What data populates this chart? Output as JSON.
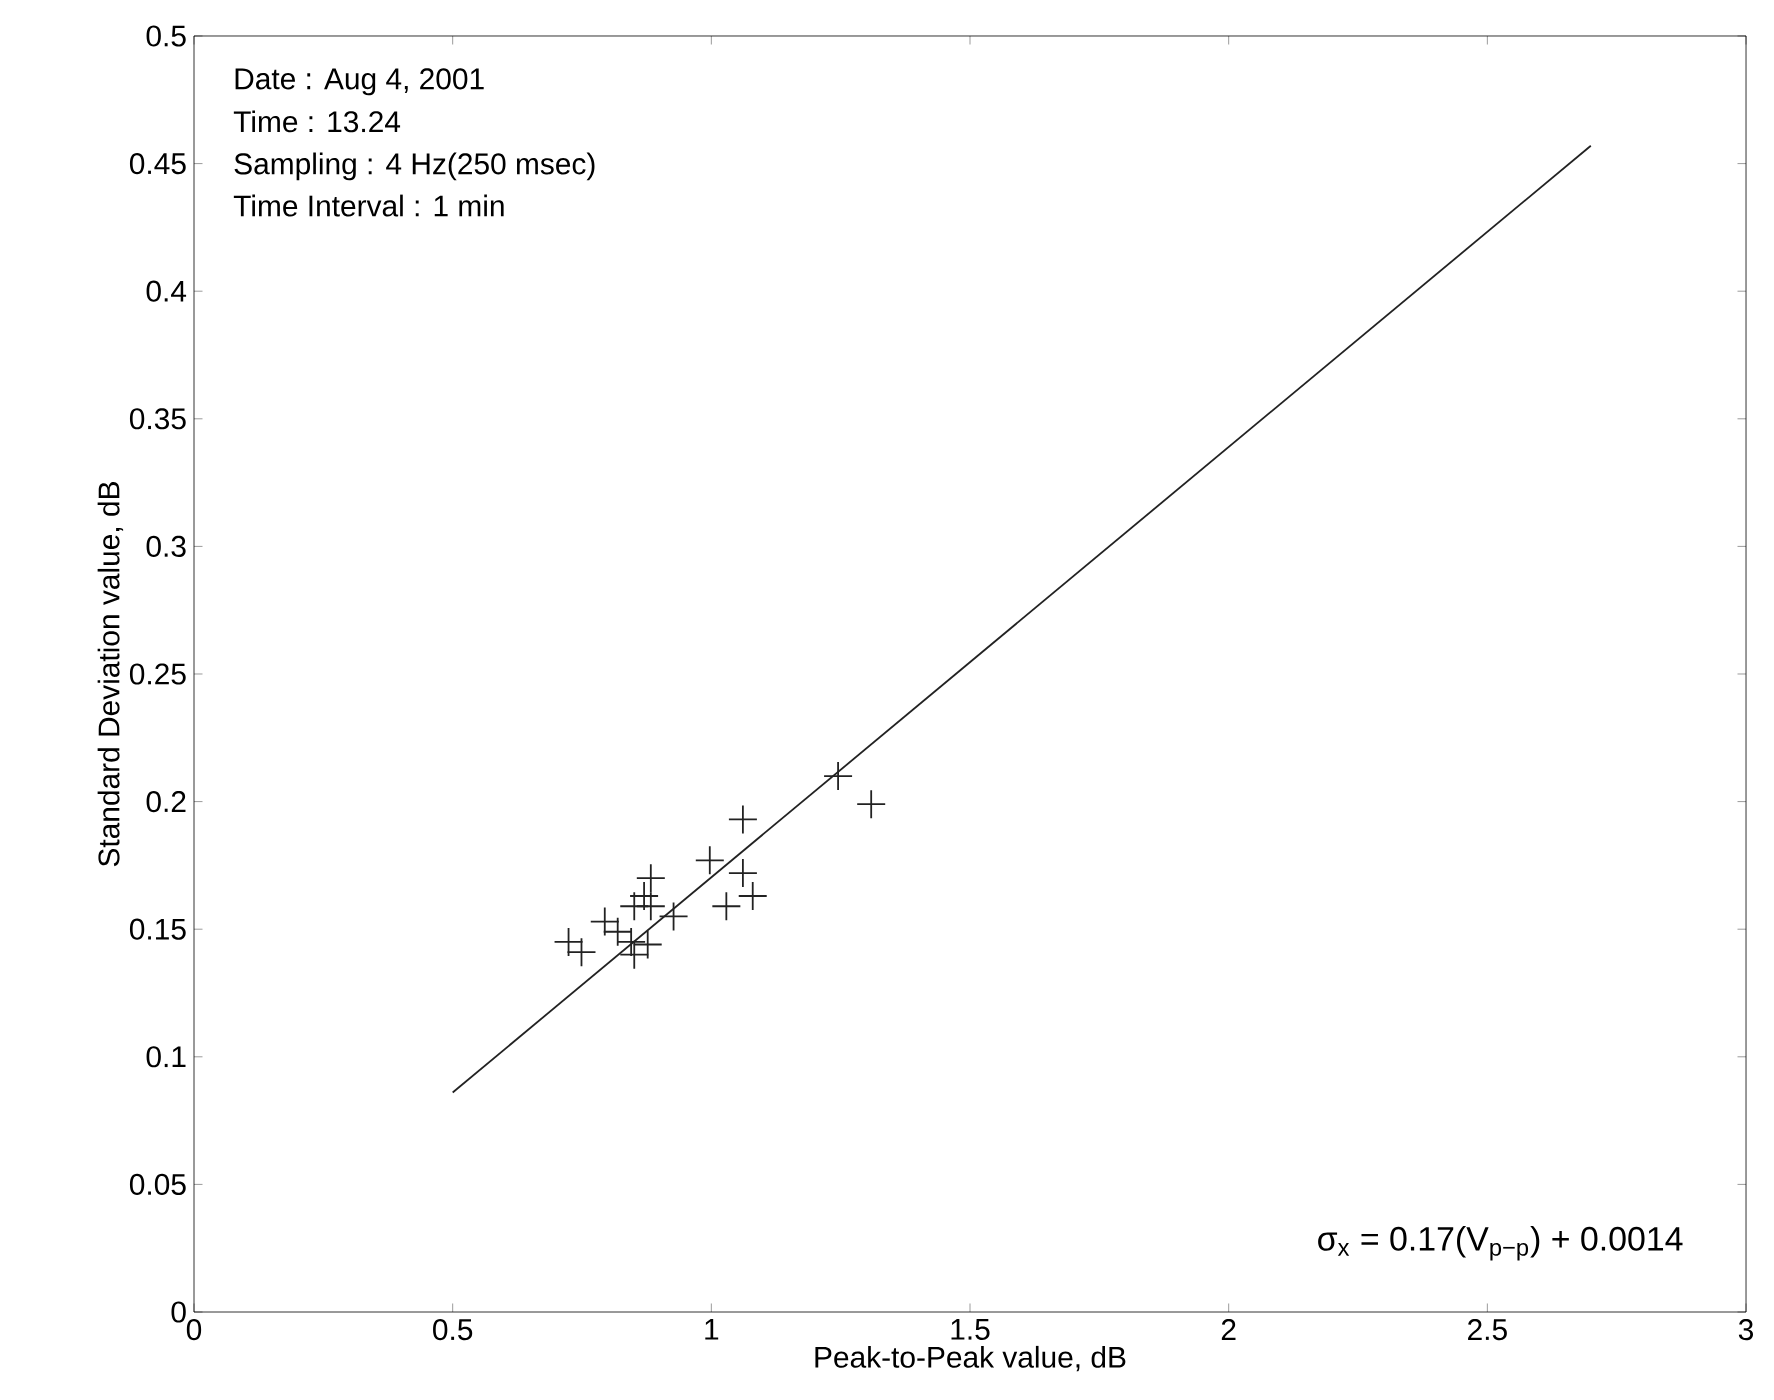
{
  "chart_data": {
    "type": "scatter",
    "xlabel": "Peak-to-Peak value, dB",
    "ylabel": "Standard Deviation value, dB",
    "annotations": [
      "Date : Aug 4, 2001",
      "Time : 13.24",
      "Sampling : 4 Hz(250 msec)",
      "Time Interval : 1 min",
      "σ$_{x}$ = 0.17(V$_{p−p}$) + 0.0014"
    ],
    "series": [
      {
        "color": "#222222",
        "marker": "cross",
        "x": [
          0.724,
          0.749,
          0.794,
          0.819,
          0.845,
          0.851,
          0.851,
          0.87,
          0.883,
          0.883,
          0.877,
          0.927,
          0.997,
          1.061,
          1.061,
          1.029,
          1.08,
          1.245,
          1.309
        ],
        "values": [
          0.145,
          0.141,
          0.153,
          0.149,
          0.145,
          0.14,
          0.159,
          0.163,
          0.17,
          0.159,
          0.144,
          0.155,
          0.177,
          0.193,
          0.172,
          0.159,
          0.163,
          0.21,
          0.199
        ]
      },
      {
        "type": "line",
        "color": "#222222",
        "marker": "none",
        "line_style": "solid",
        "x": [
          0.5,
          2.7
        ],
        "values": [
          0.086,
          0.457
        ]
      }
    ],
    "xlim": [
      0,
      3
    ],
    "ylim": [
      0,
      0.5
    ],
    "xticks": [
      0,
      0.5,
      1,
      1.5,
      2,
      2.5,
      3
    ],
    "yticks": [
      0,
      0.05,
      0.1,
      0.15,
      0.2,
      0.25,
      0.3,
      0.35,
      0.4,
      0.45,
      0.5
    ],
    "grid": false
  }
}
